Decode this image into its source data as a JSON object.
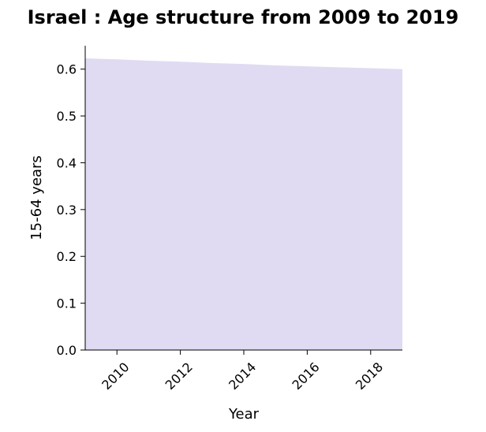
{
  "chart_data": {
    "type": "area",
    "title": "Israel : Age structure from 2009 to 2019",
    "xlabel": "Year",
    "ylabel": "15-64 years",
    "xlim": [
      2009,
      2019
    ],
    "ylim": [
      0.0,
      0.65
    ],
    "x_ticks": [
      2010,
      2012,
      2014,
      2016,
      2018
    ],
    "y_ticks": [
      0.0,
      0.1,
      0.2,
      0.3,
      0.4,
      0.5,
      0.6
    ],
    "x_tick_labels": [
      "2010",
      "2012",
      "2014",
      "2016",
      "2018"
    ],
    "y_tick_labels": [
      "0.0",
      "0.1",
      "0.2",
      "0.3",
      "0.4",
      "0.5",
      "0.6"
    ],
    "grid": false,
    "series": [
      {
        "x": [
          2009,
          2010,
          2011,
          2012,
          2013,
          2014,
          2015,
          2016,
          2017,
          2018,
          2019
        ],
        "values": [
          0.623,
          0.621,
          0.618,
          0.616,
          0.613,
          0.611,
          0.608,
          0.606,
          0.604,
          0.602,
          0.6
        ]
      }
    ],
    "colors": {
      "area_fill": "#e0dbf3",
      "axis": "#000000"
    }
  }
}
